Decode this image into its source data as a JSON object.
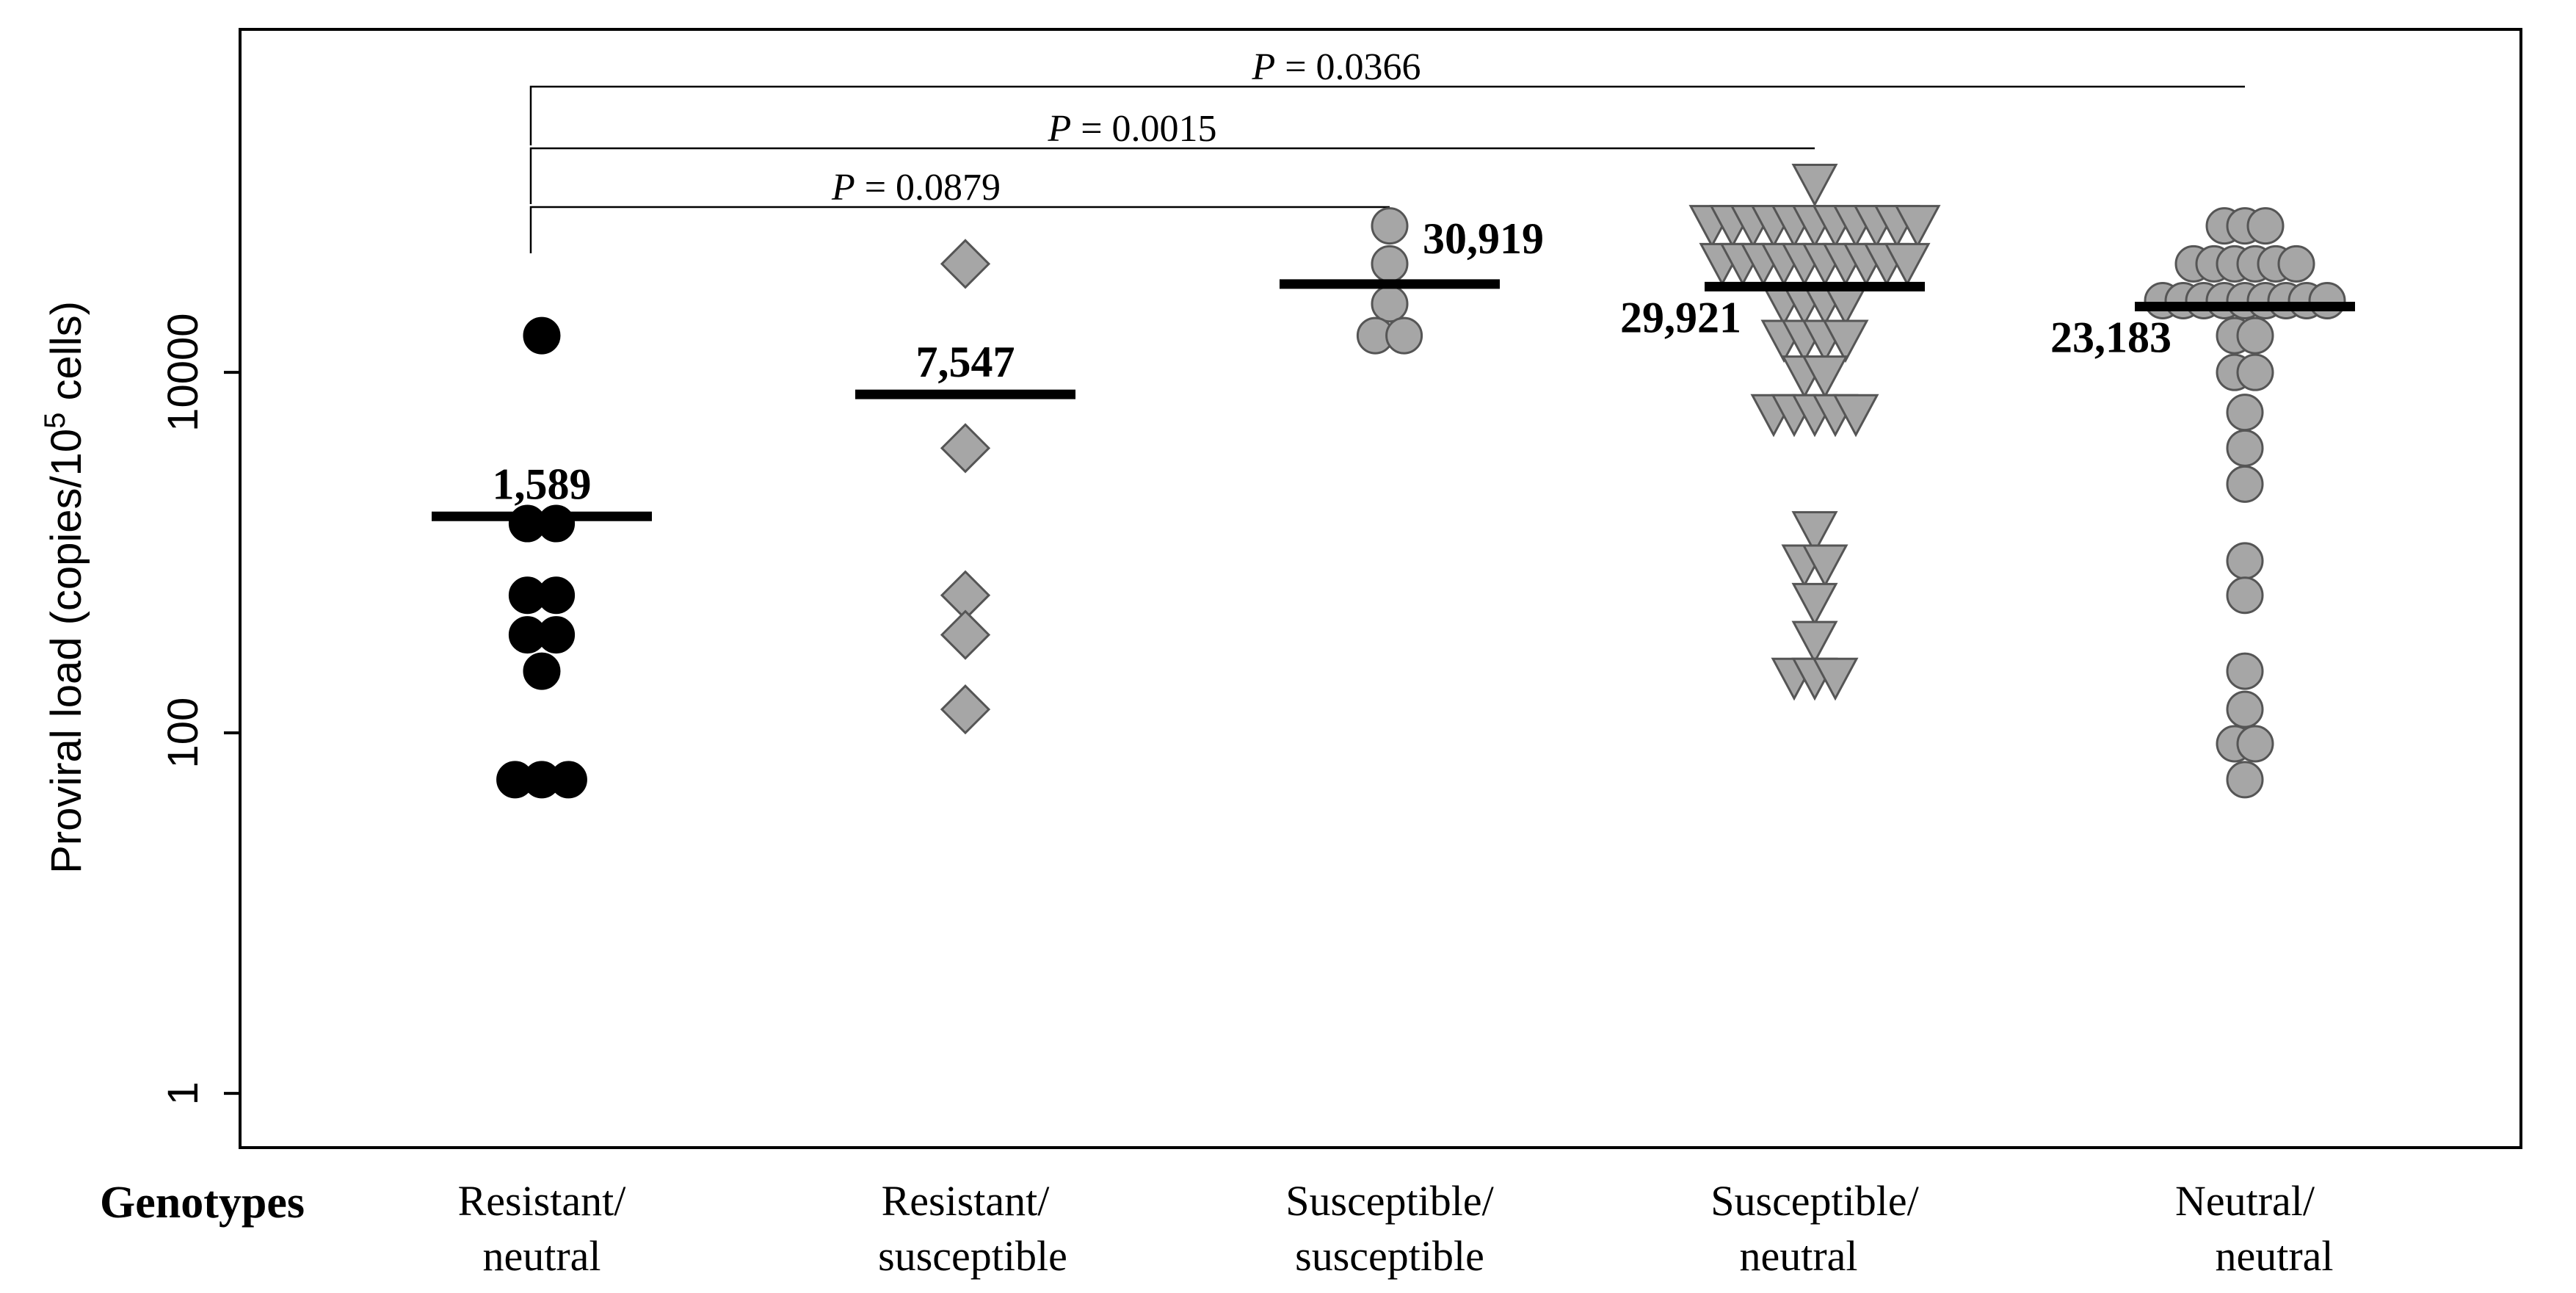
{
  "chart_data": {
    "type": "scatter",
    "subtype": "dot-plot",
    "ylabel_prefix": "Proviral load  (copies/10",
    "ylabel_exp": "5",
    "ylabel_suffix": " cells)",
    "xlabel": "Genotypes",
    "yscale": "log10",
    "ylim": [
      0.5,
      800000
    ],
    "yticks": [
      {
        "value": 1,
        "label": "1"
      },
      {
        "value": 100,
        "label": "100"
      },
      {
        "value": 10000,
        "label": "10000"
      }
    ],
    "groups": [
      {
        "id": "resistant-neutral",
        "label_line1": "Resistant/",
        "label_line2": "neutral",
        "marker": "circle",
        "color": "#000000",
        "median": 1589,
        "median_label": "1,589",
        "label_side": "top",
        "points": [
          {
            "x": 0.0,
            "y": 16000
          },
          {
            "x": -0.35,
            "y": 1450
          },
          {
            "x": 0.35,
            "y": 1450
          },
          {
            "x": -0.35,
            "y": 580
          },
          {
            "x": 0.35,
            "y": 580
          },
          {
            "x": -0.35,
            "y": 350
          },
          {
            "x": 0.35,
            "y": 350
          },
          {
            "x": 0.0,
            "y": 220
          },
          {
            "x": -0.65,
            "y": 55
          },
          {
            "x": 0.0,
            "y": 55
          },
          {
            "x": 0.65,
            "y": 55
          }
        ]
      },
      {
        "id": "resistant-susceptible",
        "label_line1": "Resistant/",
        "label_line2": "susceptible",
        "marker": "diamond",
        "color": "#a6a6a6",
        "median": 7547,
        "median_label": "7,547",
        "label_side": "top",
        "points": [
          {
            "x": 0.0,
            "y": 40000
          },
          {
            "x": 0.0,
            "y": 3800
          },
          {
            "x": 0.0,
            "y": 580
          },
          {
            "x": 0.0,
            "y": 350
          },
          {
            "x": 0.0,
            "y": 135
          }
        ]
      },
      {
        "id": "susceptible-susceptible",
        "label_line1": "Susceptible/",
        "label_line2": "susceptible",
        "marker": "circle",
        "color": "#a6a6a6",
        "median": 30919,
        "median_label": "30,919",
        "label_side": "right",
        "points": [
          {
            "x": 0.0,
            "y": 65000
          },
          {
            "x": 0.0,
            "y": 40000
          },
          {
            "x": 0.0,
            "y": 24000
          },
          {
            "x": -0.35,
            "y": 16000
          },
          {
            "x": 0.35,
            "y": 16000
          }
        ]
      },
      {
        "id": "susceptible-neutral",
        "label_line1": "Susceptible/",
        "label_line2": "neutral",
        "marker": "triangle-down",
        "color": "#a6a6a6",
        "median": 29921,
        "median_label": "29,921",
        "label_side": "left",
        "points": [
          {
            "x": 0.0,
            "y": 110000
          },
          {
            "x": -2.5,
            "y": 65000
          },
          {
            "x": -2.0,
            "y": 65000
          },
          {
            "x": -1.5,
            "y": 65000
          },
          {
            "x": -1.0,
            "y": 65000
          },
          {
            "x": -0.5,
            "y": 65000
          },
          {
            "x": 0.0,
            "y": 65000
          },
          {
            "x": 0.5,
            "y": 65000
          },
          {
            "x": 1.0,
            "y": 65000
          },
          {
            "x": 1.5,
            "y": 65000
          },
          {
            "x": 2.0,
            "y": 65000
          },
          {
            "x": 2.5,
            "y": 65000
          },
          {
            "x": -2.25,
            "y": 40000
          },
          {
            "x": -1.75,
            "y": 40000
          },
          {
            "x": -1.25,
            "y": 40000
          },
          {
            "x": -0.75,
            "y": 40000
          },
          {
            "x": -0.25,
            "y": 40000
          },
          {
            "x": 0.25,
            "y": 40000
          },
          {
            "x": 0.75,
            "y": 40000
          },
          {
            "x": 1.25,
            "y": 40000
          },
          {
            "x": 1.75,
            "y": 40000
          },
          {
            "x": 2.25,
            "y": 40000
          },
          {
            "x": -0.75,
            "y": 24000
          },
          {
            "x": -0.25,
            "y": 24000
          },
          {
            "x": 0.25,
            "y": 24000
          },
          {
            "x": 0.75,
            "y": 24000
          },
          {
            "x": -0.75,
            "y": 15000
          },
          {
            "x": -0.25,
            "y": 15000
          },
          {
            "x": 0.25,
            "y": 15000
          },
          {
            "x": 0.75,
            "y": 15000
          },
          {
            "x": -0.25,
            "y": 9500
          },
          {
            "x": 0.25,
            "y": 9500
          },
          {
            "x": -1.0,
            "y": 5800
          },
          {
            "x": -0.5,
            "y": 5800
          },
          {
            "x": 0.0,
            "y": 5800
          },
          {
            "x": 0.5,
            "y": 5800
          },
          {
            "x": 1.0,
            "y": 5800
          },
          {
            "x": 0.0,
            "y": 1300
          },
          {
            "x": -0.25,
            "y": 850
          },
          {
            "x": 0.25,
            "y": 850
          },
          {
            "x": 0.0,
            "y": 520
          },
          {
            "x": 0.0,
            "y": 320
          },
          {
            "x": -0.5,
            "y": 200
          },
          {
            "x": 0.0,
            "y": 200
          },
          {
            "x": 0.5,
            "y": 200
          }
        ]
      },
      {
        "id": "neutral-neutral",
        "label_line1": "Neutral/",
        "label_line2": "neutral",
        "marker": "circle",
        "color": "#a6a6a6",
        "median": 23183,
        "median_label": "23,183",
        "label_side": "left",
        "points": [
          {
            "x": -0.5,
            "y": 65000
          },
          {
            "x": 0.0,
            "y": 65000
          },
          {
            "x": 0.5,
            "y": 65000
          },
          {
            "x": -1.25,
            "y": 40000
          },
          {
            "x": -0.75,
            "y": 40000
          },
          {
            "x": -0.25,
            "y": 40000
          },
          {
            "x": 0.25,
            "y": 40000
          },
          {
            "x": 0.75,
            "y": 40000
          },
          {
            "x": 1.25,
            "y": 40000
          },
          {
            "x": -2.0,
            "y": 25000
          },
          {
            "x": -1.5,
            "y": 25000
          },
          {
            "x": -1.0,
            "y": 25000
          },
          {
            "x": -0.5,
            "y": 25000
          },
          {
            "x": 0.0,
            "y": 25000
          },
          {
            "x": 0.5,
            "y": 25000
          },
          {
            "x": 1.0,
            "y": 25000
          },
          {
            "x": 1.5,
            "y": 25000
          },
          {
            "x": 2.0,
            "y": 25000
          },
          {
            "x": -0.25,
            "y": 16000
          },
          {
            "x": 0.25,
            "y": 16000
          },
          {
            "x": -0.25,
            "y": 10000
          },
          {
            "x": 0.25,
            "y": 10000
          },
          {
            "x": 0.0,
            "y": 6000
          },
          {
            "x": 0.0,
            "y": 3800
          },
          {
            "x": 0.0,
            "y": 2400
          },
          {
            "x": 0.0,
            "y": 900
          },
          {
            "x": 0.0,
            "y": 580
          },
          {
            "x": 0.0,
            "y": 220
          },
          {
            "x": 0.0,
            "y": 135
          },
          {
            "x": -0.25,
            "y": 87
          },
          {
            "x": 0.25,
            "y": 87
          },
          {
            "x": 0.0,
            "y": 55
          }
        ]
      }
    ],
    "comparisons": [
      {
        "from": 0,
        "to": 2,
        "p_italic": "P",
        "p_rest": " = 0.0879",
        "level": 0
      },
      {
        "from": 0,
        "to": 3,
        "p_italic": "P",
        "p_rest": " = 0.0015",
        "level": 1
      },
      {
        "from": 0,
        "to": 4,
        "p_italic": "P",
        "p_rest": " = 0.0366",
        "level": 2
      }
    ]
  }
}
